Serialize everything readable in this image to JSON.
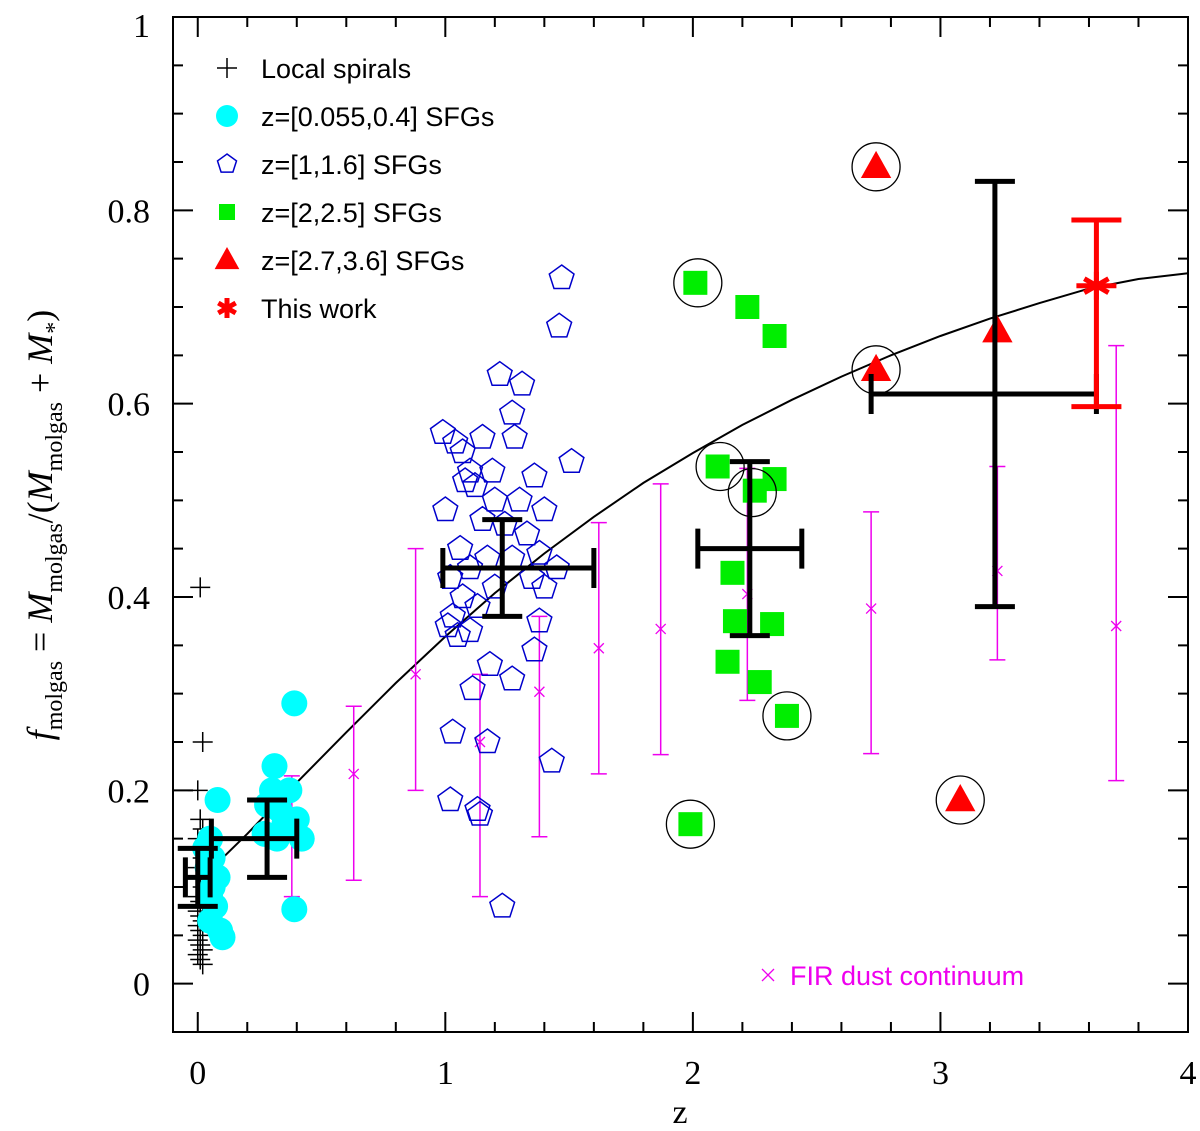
{
  "chart_data": {
    "type": "scatter",
    "xlabel": "z",
    "ylabel": {
      "f": "f",
      "f_sub": "molgas",
      "eq": " = ",
      "M1": "M",
      "M1_sub": "molgas",
      "slash": "/(",
      "M2": "M",
      "M2_sub": "molgas",
      "plus": " + ",
      "M3": "M",
      "M3_sub": "*",
      "close": ")"
    },
    "xlim": [
      -0.1,
      4.0
    ],
    "ylim": [
      -0.05,
      1.0
    ],
    "x_ticks": [
      0,
      1,
      2,
      3,
      4
    ],
    "x_tick_labels": [
      "0",
      "1",
      "2",
      "3",
      "4"
    ],
    "y_ticks": [
      0,
      0.2,
      0.4,
      0.6,
      0.8,
      1
    ],
    "y_tick_labels": [
      "0",
      "0.2",
      "0.4",
      "0.6",
      "0.8",
      "1"
    ],
    "legend": [
      {
        "label": "Local spirals",
        "marker": "plus",
        "color": "#000000"
      },
      {
        "label": "z=[0.055,0.4] SFGs",
        "marker": "circle",
        "color": "#00ffff"
      },
      {
        "label": "z=[1,1.6] SFGs",
        "marker": "pentagon",
        "color": "#0000cc"
      },
      {
        "label": "z=[2,2.5] SFGs",
        "marker": "square",
        "color": "#00ee00"
      },
      {
        "label": "z=[2.7,3.6] SFGs",
        "marker": "triangle",
        "color": "#ff0000"
      },
      {
        "label": "This work",
        "marker": "asterisk",
        "color": "#ff0000"
      }
    ],
    "fir_legend": {
      "label": "FIR dust continuum",
      "marker": "x",
      "color": "#ee00ee"
    },
    "series": [
      {
        "name": "Local spirals",
        "marker": "plus",
        "color": "#000000",
        "points": [
          [
            0.01,
            0.41
          ],
          [
            0.02,
            0.25
          ],
          [
            0.0,
            0.2
          ],
          [
            0.01,
            0.17
          ],
          [
            0.02,
            0.16
          ],
          [
            0.0,
            0.15
          ],
          [
            0.01,
            0.14
          ],
          [
            0.02,
            0.13
          ],
          [
            0.0,
            0.12
          ],
          [
            0.01,
            0.11
          ],
          [
            0.02,
            0.1
          ],
          [
            0.0,
            0.09
          ],
          [
            0.01,
            0.085
          ],
          [
            0.02,
            0.08
          ],
          [
            0.0,
            0.075
          ],
          [
            0.01,
            0.07
          ],
          [
            0.02,
            0.065
          ],
          [
            0.0,
            0.06
          ],
          [
            0.01,
            0.055
          ],
          [
            0.02,
            0.05
          ],
          [
            0.0,
            0.045
          ],
          [
            0.01,
            0.04
          ],
          [
            0.02,
            0.035
          ],
          [
            0.0,
            0.03
          ],
          [
            0.01,
            0.025
          ],
          [
            0.02,
            0.02
          ]
        ]
      },
      {
        "name": "z=[0.055,0.4] SFGs",
        "marker": "circle",
        "color": "#00ffff",
        "points": [
          [
            0.39,
            0.29
          ],
          [
            0.31,
            0.225
          ],
          [
            0.3,
            0.2
          ],
          [
            0.37,
            0.2
          ],
          [
            0.28,
            0.185
          ],
          [
            0.33,
            0.18
          ],
          [
            0.4,
            0.17
          ],
          [
            0.08,
            0.19
          ],
          [
            0.35,
            0.165
          ],
          [
            0.42,
            0.15
          ],
          [
            0.27,
            0.155
          ],
          [
            0.32,
            0.15
          ],
          [
            0.05,
            0.15
          ],
          [
            0.06,
            0.13
          ],
          [
            0.04,
            0.12
          ],
          [
            0.08,
            0.11
          ],
          [
            0.06,
            0.1
          ],
          [
            0.05,
            0.09
          ],
          [
            0.07,
            0.08
          ],
          [
            0.39,
            0.077
          ],
          [
            0.05,
            0.065
          ],
          [
            0.09,
            0.055
          ],
          [
            0.1,
            0.048
          ],
          [
            0.03,
            0.14
          ]
        ]
      },
      {
        "name": "z=[1,1.6] SFGs",
        "marker": "pentagon",
        "color": "#0000cc",
        "points": [
          [
            1.47,
            0.73
          ],
          [
            1.46,
            0.68
          ],
          [
            1.22,
            0.63
          ],
          [
            1.31,
            0.62
          ],
          [
            1.27,
            0.59
          ],
          [
            0.99,
            0.57
          ],
          [
            1.04,
            0.56
          ],
          [
            1.15,
            0.565
          ],
          [
            1.28,
            0.565
          ],
          [
            1.07,
            0.55
          ],
          [
            1.51,
            0.54
          ],
          [
            1.1,
            0.53
          ],
          [
            1.19,
            0.53
          ],
          [
            1.36,
            0.525
          ],
          [
            1.08,
            0.52
          ],
          [
            1.12,
            0.515
          ],
          [
            1.2,
            0.5
          ],
          [
            1.3,
            0.5
          ],
          [
            1.0,
            0.49
          ],
          [
            1.4,
            0.49
          ],
          [
            1.15,
            0.48
          ],
          [
            1.24,
            0.475
          ],
          [
            1.33,
            0.465
          ],
          [
            1.06,
            0.45
          ],
          [
            1.38,
            0.445
          ],
          [
            1.17,
            0.44
          ],
          [
            1.27,
            0.44
          ],
          [
            1.1,
            0.43
          ],
          [
            1.45,
            0.43
          ],
          [
            1.02,
            0.42
          ],
          [
            1.35,
            0.42
          ],
          [
            1.2,
            0.41
          ],
          [
            1.4,
            0.41
          ],
          [
            1.07,
            0.4
          ],
          [
            1.13,
            0.39
          ],
          [
            1.03,
            0.38
          ],
          [
            1.38,
            0.375
          ],
          [
            1.01,
            0.37
          ],
          [
            1.1,
            0.365
          ],
          [
            1.05,
            0.36
          ],
          [
            1.36,
            0.345
          ],
          [
            1.18,
            0.33
          ],
          [
            1.27,
            0.315
          ],
          [
            1.11,
            0.305
          ],
          [
            1.03,
            0.26
          ],
          [
            1.17,
            0.25
          ],
          [
            1.43,
            0.23
          ],
          [
            1.02,
            0.19
          ],
          [
            1.13,
            0.18
          ],
          [
            1.14,
            0.175
          ],
          [
            1.23,
            0.08
          ]
        ]
      },
      {
        "name": "z=[2,2.5] SFGs",
        "marker": "square",
        "color": "#00ee00",
        "points": [
          [
            2.01,
            0.725
          ],
          [
            2.22,
            0.7
          ],
          [
            2.33,
            0.67
          ],
          [
            2.1,
            0.535
          ],
          [
            2.33,
            0.522
          ],
          [
            2.25,
            0.51
          ],
          [
            2.16,
            0.425
          ],
          [
            2.17,
            0.375
          ],
          [
            2.32,
            0.372
          ],
          [
            2.14,
            0.333
          ],
          [
            2.27,
            0.312
          ],
          [
            2.38,
            0.277
          ],
          [
            1.99,
            0.165
          ]
        ]
      },
      {
        "name": "z=[2.7,3.6] SFGs",
        "marker": "triangle",
        "color": "#ff0000",
        "points": [
          [
            2.74,
            0.845
          ],
          [
            2.74,
            0.635
          ],
          [
            3.23,
            0.675
          ],
          [
            3.08,
            0.19
          ]
        ]
      }
    ],
    "circled_points": [
      [
        2.74,
        0.845
      ],
      [
        2.74,
        0.635
      ],
      [
        3.08,
        0.19
      ],
      [
        2.02,
        0.725
      ],
      [
        2.11,
        0.535
      ],
      [
        2.24,
        0.508
      ],
      [
        2.38,
        0.277
      ],
      [
        1.99,
        0.165
      ]
    ],
    "fir_dust": {
      "name": "FIR dust continuum",
      "color": "#ee00ee",
      "points": [
        {
          "x": 0.38,
          "y": 0.16,
          "ylo": 0.09,
          "yhi": 0.215
        },
        {
          "x": 0.63,
          "y": 0.217,
          "ylo": 0.107,
          "yhi": 0.287
        },
        {
          "x": 0.88,
          "y": 0.32,
          "ylo": 0.2,
          "yhi": 0.45
        },
        {
          "x": 1.14,
          "y": 0.25,
          "ylo": 0.09,
          "yhi": 0.32
        },
        {
          "x": 1.38,
          "y": 0.302,
          "ylo": 0.152,
          "yhi": 0.38
        },
        {
          "x": 1.62,
          "y": 0.347,
          "ylo": 0.217,
          "yhi": 0.477
        },
        {
          "x": 1.87,
          "y": 0.367,
          "ylo": 0.237,
          "yhi": 0.517
        },
        {
          "x": 2.22,
          "y": 0.403,
          "ylo": 0.293,
          "yhi": 0.533
        },
        {
          "x": 2.72,
          "y": 0.388,
          "ylo": 0.238,
          "yhi": 0.488
        },
        {
          "x": 3.23,
          "y": 0.427,
          "ylo": 0.335,
          "yhi": 0.535
        },
        {
          "x": 3.71,
          "y": 0.37,
          "ylo": 0.21,
          "yhi": 0.66
        }
      ]
    },
    "binned_averages": [
      {
        "x": 0.0,
        "y": 0.11,
        "xlo": -0.05,
        "xhi": 0.05,
        "ylo": 0.08,
        "yhi": 0.14
      },
      {
        "x": 0.28,
        "y": 0.15,
        "xlo": 0.055,
        "xhi": 0.4,
        "ylo": 0.11,
        "yhi": 0.19
      },
      {
        "x": 1.23,
        "y": 0.43,
        "xlo": 0.99,
        "xhi": 1.6,
        "ylo": 0.38,
        "yhi": 0.48
      },
      {
        "x": 2.23,
        "y": 0.45,
        "xlo": 2.02,
        "xhi": 2.44,
        "ylo": 0.36,
        "yhi": 0.54
      },
      {
        "x": 3.22,
        "y": 0.61,
        "xlo": 2.72,
        "xhi": 3.63,
        "ylo": 0.39,
        "yhi": 0.83
      }
    ],
    "this_work": {
      "x": 3.63,
      "y": 0.722,
      "ylo": 0.597,
      "yhi": 0.79,
      "color": "#ff0000"
    },
    "fit_curve": {
      "x": [
        0,
        0.2,
        0.4,
        0.6,
        0.8,
        1.0,
        1.2,
        1.4,
        1.6,
        1.8,
        2.0,
        2.2,
        2.4,
        2.6,
        2.8,
        3.0,
        3.2,
        3.4,
        3.6,
        3.8,
        4.0
      ],
      "y": [
        0.105,
        0.155,
        0.208,
        0.26,
        0.311,
        0.359,
        0.404,
        0.445,
        0.483,
        0.518,
        0.549,
        0.578,
        0.604,
        0.628,
        0.65,
        0.67,
        0.688,
        0.704,
        0.719,
        0.729,
        0.735
      ]
    }
  }
}
